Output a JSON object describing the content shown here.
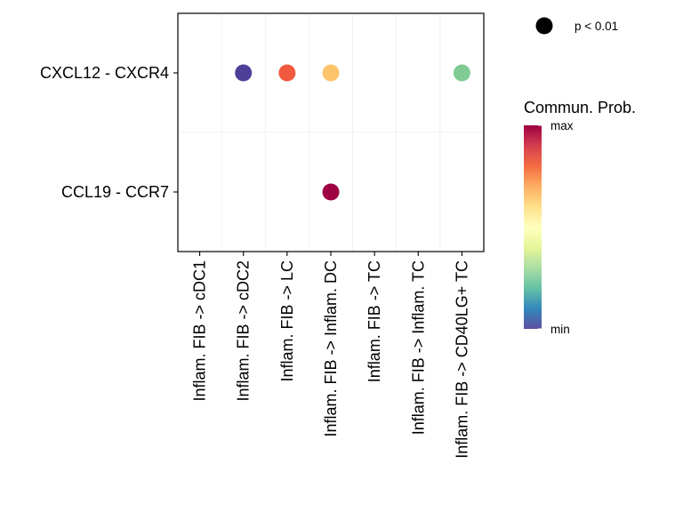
{
  "chart_data": {
    "type": "scatter",
    "title": "",
    "xlabel": "",
    "ylabel": "",
    "categories": [
      "Inflam. FIB -> cDC1",
      "Inflam. FIB -> cDC2",
      "Inflam. FIB -> LC",
      "Inflam. FIB -> Inflam. DC",
      "Inflam. FIB -> TC",
      "Inflam. FIB -> Inflam. TC",
      "Inflam. FIB -> CD40LG+ TC"
    ],
    "rows": [
      "CXCL12 - CXCR4",
      "CCL19 - CCR7"
    ],
    "points": [
      {
        "row": "CXCL12 - CXCR4",
        "category": "Inflam. FIB -> cDC2",
        "prob": 0.0,
        "color": "#4e3f98"
      },
      {
        "row": "CXCL12 - CXCR4",
        "category": "Inflam. FIB -> LC",
        "prob": 0.82,
        "color": "#f15a3c"
      },
      {
        "row": "CXCL12 - CXCR4",
        "category": "Inflam. FIB -> Inflam. DC",
        "prob": 0.62,
        "color": "#fdc46c"
      },
      {
        "row": "CXCL12 - CXCR4",
        "category": "Inflam. FIB -> CD40LG+ TC",
        "prob": 0.3,
        "color": "#80cb93"
      },
      {
        "row": "CCL19 - CCR7",
        "category": "Inflam. FIB -> Inflam. DC",
        "prob": 1.0,
        "color": "#9e0142"
      }
    ],
    "pvalue_legend": {
      "label": "p < 0.01",
      "color": "#000000"
    },
    "colorbar": {
      "title": "Commun. Prob.",
      "max_label": "max",
      "min_label": "min",
      "colors": [
        "#9e0142",
        "#d53e4f",
        "#f46d43",
        "#fdae61",
        "#fee08b",
        "#ffffbf",
        "#e6f598",
        "#abdda4",
        "#66c2a5",
        "#3288bd",
        "#5e4fa2"
      ]
    },
    "grid": true,
    "legend_position": "right"
  }
}
